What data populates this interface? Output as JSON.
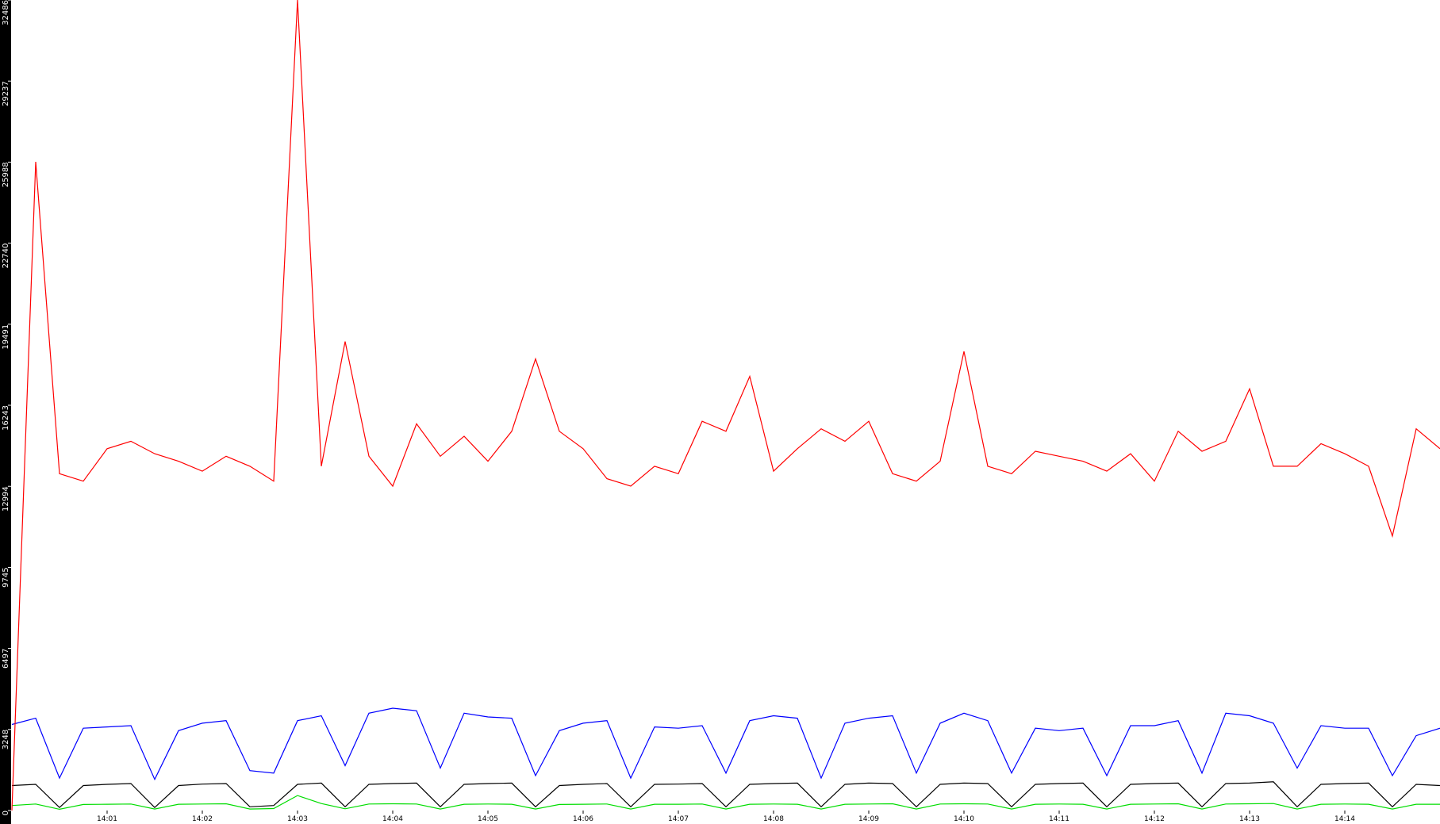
{
  "chart_data": {
    "type": "line",
    "x": [
      0,
      0.25,
      0.5,
      0.75,
      1,
      1.25,
      1.5,
      1.75,
      2,
      2.25,
      2.5,
      2.75,
      3,
      3.25,
      3.5,
      3.75,
      4,
      4.25,
      4.5,
      4.75,
      5,
      5.25,
      5.5,
      5.75,
      6,
      6.25,
      6.5,
      6.75,
      7,
      7.25,
      7.5,
      7.75,
      8,
      8.25,
      8.5,
      8.75,
      9,
      9.25,
      9.5,
      9.75,
      10,
      10.25,
      10.5,
      10.75,
      11,
      11.25,
      11.5,
      11.75,
      12,
      12.25,
      12.5,
      12.75,
      13,
      13.25,
      13.5,
      13.75,
      14,
      14.25,
      14.5,
      14.75,
      15
    ],
    "xlim": [
      0,
      15
    ],
    "xticks": [
      {
        "value": 1,
        "label": "14:01"
      },
      {
        "value": 2,
        "label": "14:02"
      },
      {
        "value": 3,
        "label": "14:03"
      },
      {
        "value": 4,
        "label": "14:04"
      },
      {
        "value": 5,
        "label": "14:05"
      },
      {
        "value": 6,
        "label": "14:06"
      },
      {
        "value": 7,
        "label": "14:07"
      },
      {
        "value": 8,
        "label": "14:08"
      },
      {
        "value": 9,
        "label": "14:09"
      },
      {
        "value": 10,
        "label": "14:10"
      },
      {
        "value": 11,
        "label": "14:11"
      },
      {
        "value": 12,
        "label": "14:12"
      },
      {
        "value": 13,
        "label": "14:13"
      },
      {
        "value": 14,
        "label": "14:14"
      }
    ],
    "ylim": [
      0,
      32486
    ],
    "yticks": [
      0,
      3248,
      6497,
      9745,
      12994,
      16243,
      19491,
      22740,
      25988,
      29237,
      32486
    ],
    "series": [
      {
        "color": "#ff0000",
        "values": [
          0,
          26000,
          13500,
          13200,
          14500,
          14800,
          14300,
          14000,
          13600,
          14200,
          13800,
          13200,
          32486,
          13800,
          18800,
          14200,
          13000,
          15500,
          14200,
          15000,
          14000,
          15200,
          18100,
          15200,
          14500,
          13300,
          13000,
          13800,
          13500,
          15600,
          15200,
          17400,
          13600,
          14500,
          15300,
          14800,
          15600,
          13500,
          13200,
          14000,
          18400,
          13800,
          13500,
          14400,
          14200,
          14000,
          13600,
          14300,
          13200,
          15200,
          14400,
          14800,
          16900,
          13800,
          13800,
          14700,
          14300,
          13800,
          11000,
          15300,
          14500
        ]
      },
      {
        "color": "#0000ff",
        "values": [
          3450,
          3700,
          1300,
          3300,
          3350,
          3400,
          1250,
          3200,
          3500,
          3600,
          1600,
          1500,
          3600,
          3800,
          1800,
          3900,
          4100,
          4000,
          1700,
          3900,
          3750,
          3700,
          1400,
          3200,
          3500,
          3600,
          1300,
          3350,
          3300,
          3400,
          1500,
          3600,
          3800,
          3700,
          1300,
          3500,
          3700,
          3800,
          1500,
          3500,
          3900,
          3600,
          1500,
          3300,
          3200,
          3300,
          1400,
          3400,
          3400,
          3600,
          1500,
          3900,
          3800,
          3500,
          1700,
          3400,
          3300,
          3300,
          1400,
          3000,
          3300
        ]
      },
      {
        "color": "#000000",
        "values": [
          1000,
          1050,
          120,
          1000,
          1050,
          1080,
          120,
          1000,
          1060,
          1080,
          150,
          200,
          1050,
          1100,
          150,
          1050,
          1080,
          1100,
          150,
          1050,
          1080,
          1100,
          150,
          1000,
          1050,
          1080,
          150,
          1050,
          1060,
          1080,
          150,
          1050,
          1080,
          1100,
          150,
          1050,
          1100,
          1080,
          150,
          1050,
          1100,
          1080,
          150,
          1050,
          1080,
          1100,
          150,
          1050,
          1080,
          1100,
          150,
          1080,
          1100,
          1150,
          150,
          1050,
          1080,
          1100,
          150,
          1050,
          1000
        ]
      },
      {
        "color": "#00dd00",
        "values": [
          200,
          260,
          50,
          240,
          250,
          260,
          60,
          250,
          260,
          270,
          60,
          80,
          600,
          280,
          70,
          260,
          270,
          260,
          60,
          250,
          260,
          250,
          60,
          240,
          250,
          260,
          60,
          250,
          250,
          260,
          60,
          250,
          260,
          250,
          60,
          250,
          260,
          270,
          60,
          260,
          270,
          260,
          60,
          250,
          260,
          250,
          60,
          250,
          260,
          270,
          60,
          260,
          270,
          280,
          60,
          250,
          260,
          250,
          60,
          250,
          250
        ]
      }
    ]
  }
}
